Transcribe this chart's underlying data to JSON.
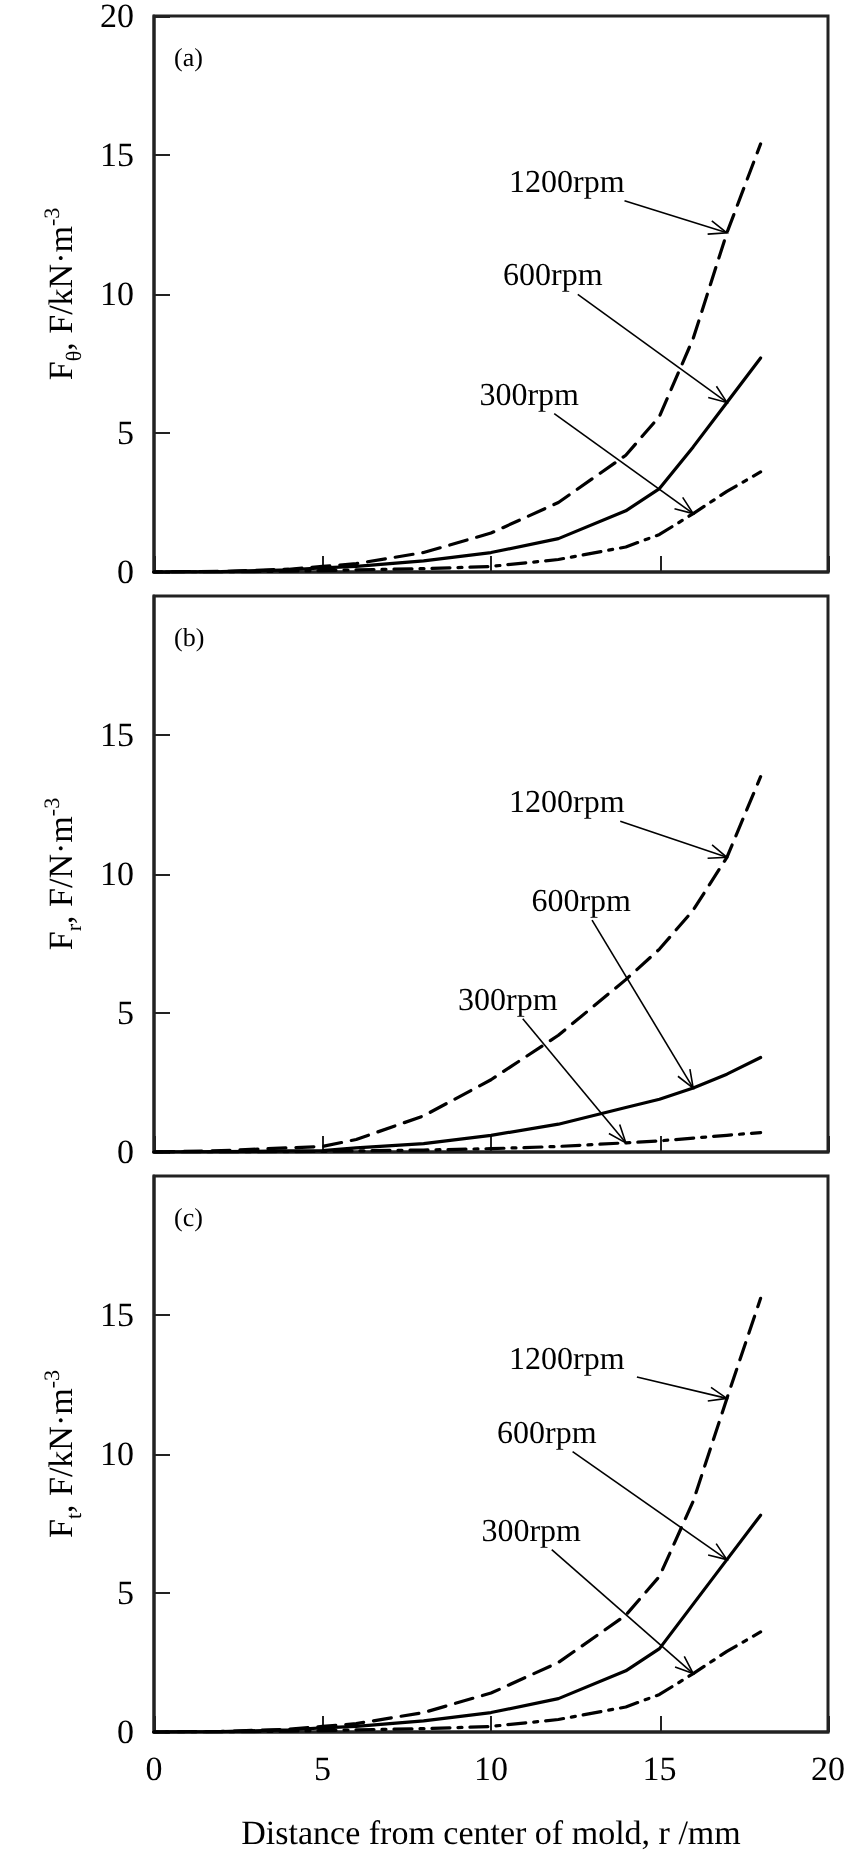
{
  "chart_data": [
    {
      "type": "line",
      "ylabel": "F$_{θ}$, F/kN·m$^{-3}$",
      "x": [
        0,
        2,
        4,
        5,
        6,
        8,
        10,
        12,
        14,
        15,
        16,
        17,
        18
      ],
      "xlim": [
        0,
        20
      ],
      "xticks": [
        0,
        5,
        10,
        15,
        20
      ],
      "ylim": [
        0,
        20
      ],
      "yticks": [
        0,
        5,
        10,
        15,
        20
      ],
      "tick_labels": "y",
      "marker": "none",
      "series": [
        {
          "color": "#000000",
          "line_style": "dashed",
          "values": [
            0,
            0.02,
            0.1,
            0.2,
            0.3,
            0.7,
            1.4,
            2.5,
            4.2,
            5.6,
            8.4,
            12.2,
            15.4
          ]
        },
        {
          "color": "#000000",
          "line_style": "solid",
          "values": [
            0,
            0.01,
            0.08,
            0.15,
            0.2,
            0.4,
            0.7,
            1.2,
            2.2,
            3.0,
            4.5,
            6.1,
            7.7
          ]
        },
        {
          "color": "#000000",
          "line_style": "dashdot",
          "values": [
            0,
            0,
            0.03,
            0.05,
            0.08,
            0.12,
            0.2,
            0.45,
            0.9,
            1.35,
            2.1,
            2.9,
            3.6
          ]
        }
      ],
      "annotations": [
        "(a)",
        {
          "text": "1200rpm",
          "x": 17,
          "y": 12.2
        },
        {
          "text": "600rpm",
          "x": 17,
          "y": 6.1
        },
        {
          "text": "300rpm",
          "x": 16,
          "y": 2.1
        }
      ]
    },
    {
      "type": "line",
      "ylabel": "F$_{r}$, F/N·m$^{-3}$",
      "x": [
        0,
        2,
        4,
        5,
        6,
        8,
        10,
        12,
        14,
        15,
        16,
        17,
        18
      ],
      "xlim": [
        0,
        20
      ],
      "xticks": [
        0,
        5,
        10,
        15,
        20
      ],
      "ylim": [
        0,
        20
      ],
      "yticks": [
        0,
        5,
        10,
        15
      ],
      "tick_labels": "y",
      "marker": "none",
      "series": [
        {
          "color": "#000000",
          "line_style": "dashed",
          "values": [
            0,
            0.05,
            0.15,
            0.2,
            0.45,
            1.3,
            2.6,
            4.2,
            6.2,
            7.3,
            8.7,
            10.6,
            13.5
          ]
        },
        {
          "color": "#000000",
          "line_style": "solid",
          "values": [
            0,
            0.01,
            0.04,
            0.05,
            0.15,
            0.3,
            0.6,
            1.0,
            1.6,
            1.9,
            2.3,
            2.8,
            3.4
          ]
        },
        {
          "color": "#000000",
          "line_style": "dashdot",
          "values": [
            0,
            0,
            0.01,
            0.02,
            0.04,
            0.07,
            0.12,
            0.2,
            0.33,
            0.4,
            0.5,
            0.6,
            0.7
          ]
        }
      ],
      "annotations": [
        "(b)",
        {
          "text": "1200rpm",
          "x": 17,
          "y": 10.6
        },
        {
          "text": "600rpm",
          "x": 16,
          "y": 2.3
        },
        {
          "text": "300rpm",
          "x": 14,
          "y": 0.33
        }
      ]
    },
    {
      "type": "line",
      "ylabel": "F$_{t}$, F/kN·m$^{-3}$",
      "xlabel": "Distance from center of mold, r /mm",
      "x": [
        0,
        2,
        4,
        5,
        6,
        8,
        10,
        12,
        14,
        15,
        16,
        17,
        18
      ],
      "xlim": [
        0,
        20
      ],
      "xticks": [
        0,
        5,
        10,
        15,
        20
      ],
      "ylim": [
        0,
        20
      ],
      "yticks": [
        0,
        5,
        10,
        15
      ],
      "marker": "none",
      "series": [
        {
          "color": "#000000",
          "line_style": "dashed",
          "values": [
            0,
            0.02,
            0.1,
            0.2,
            0.3,
            0.7,
            1.4,
            2.5,
            4.2,
            5.6,
            8.3,
            12.0,
            15.6
          ]
        },
        {
          "color": "#000000",
          "line_style": "solid",
          "values": [
            0,
            0.01,
            0.08,
            0.15,
            0.2,
            0.4,
            0.7,
            1.2,
            2.2,
            3.0,
            4.6,
            6.2,
            7.8
          ]
        },
        {
          "color": "#000000",
          "line_style": "dashdot",
          "values": [
            0,
            0,
            0.03,
            0.05,
            0.08,
            0.12,
            0.2,
            0.45,
            0.9,
            1.35,
            2.1,
            2.9,
            3.6
          ]
        }
      ],
      "annotations": [
        "(c)",
        {
          "text": "1200rpm",
          "x": 17,
          "y": 12.0
        },
        {
          "text": "600rpm",
          "x": 17,
          "y": 6.2
        },
        {
          "text": "300rpm",
          "x": 16,
          "y": 2.1
        }
      ]
    }
  ]
}
